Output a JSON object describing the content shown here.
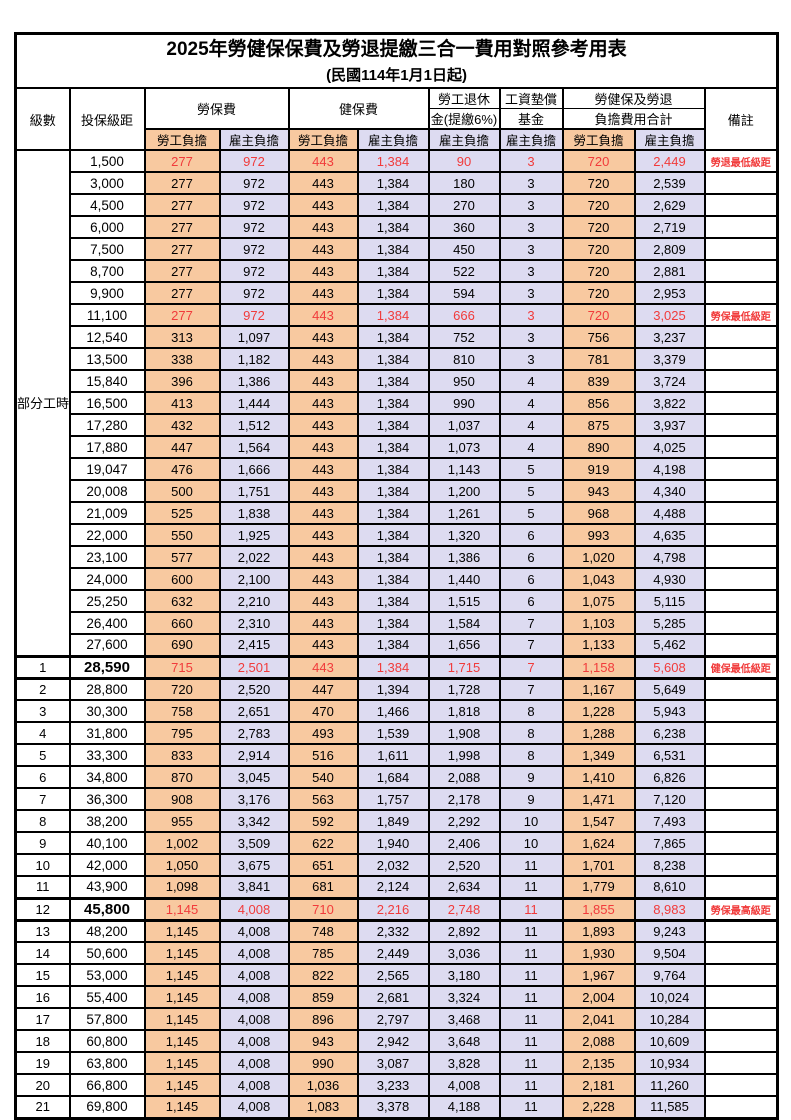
{
  "title": "2025年勞健保保費及勞退提繳三合一費用對照參考用表",
  "subtitle": "(民國114年1月1日起)",
  "header": {
    "level": "級數",
    "salary": "投保級距",
    "labor_insurance": "勞保費",
    "health_insurance": "健保費",
    "pension_line1": "勞工退休",
    "pension_line2": "金(提繳6%)",
    "wage_fund_line1": "工資墊償",
    "wage_fund_line2": "基金",
    "total_line1": "勞健保及勞退",
    "total_line2": "負擔費用合計",
    "remark": "備註",
    "employee": "勞工負擔",
    "employer": "雇主負擔"
  },
  "part_time_label": "部分工時",
  "part_time_row_count": 23,
  "colors": {
    "employee_bg": "#F8C9A0",
    "employer_bg": "#DDDBF1",
    "highlight_red": "#F13B3B",
    "border": "#000000"
  },
  "remarks_legend": {
    "pension_min": "勞退最低級距",
    "labor_min": "勞保最低級距",
    "health_min": "健保最低級距",
    "labor_max": "勞保最高級距"
  },
  "rows": [
    {
      "level": null,
      "salary": "1,500",
      "values": [
        "277",
        "972",
        "443",
        "1,384",
        "90",
        "3",
        "720",
        "2,449"
      ],
      "remark": "勞退最低級距",
      "highlight": true,
      "bold_salary": false,
      "thick": false
    },
    {
      "level": null,
      "salary": "3,000",
      "values": [
        "277",
        "972",
        "443",
        "1,384",
        "180",
        "3",
        "720",
        "2,539"
      ],
      "remark": "",
      "highlight": false,
      "bold_salary": false,
      "thick": false
    },
    {
      "level": null,
      "salary": "4,500",
      "values": [
        "277",
        "972",
        "443",
        "1,384",
        "270",
        "3",
        "720",
        "2,629"
      ],
      "remark": "",
      "highlight": false,
      "bold_salary": false,
      "thick": false
    },
    {
      "level": null,
      "salary": "6,000",
      "values": [
        "277",
        "972",
        "443",
        "1,384",
        "360",
        "3",
        "720",
        "2,719"
      ],
      "remark": "",
      "highlight": false,
      "bold_salary": false,
      "thick": false
    },
    {
      "level": null,
      "salary": "7,500",
      "values": [
        "277",
        "972",
        "443",
        "1,384",
        "450",
        "3",
        "720",
        "2,809"
      ],
      "remark": "",
      "highlight": false,
      "bold_salary": false,
      "thick": false
    },
    {
      "level": null,
      "salary": "8,700",
      "values": [
        "277",
        "972",
        "443",
        "1,384",
        "522",
        "3",
        "720",
        "2,881"
      ],
      "remark": "",
      "highlight": false,
      "bold_salary": false,
      "thick": false
    },
    {
      "level": null,
      "salary": "9,900",
      "values": [
        "277",
        "972",
        "443",
        "1,384",
        "594",
        "3",
        "720",
        "2,953"
      ],
      "remark": "",
      "highlight": false,
      "bold_salary": false,
      "thick": false
    },
    {
      "level": null,
      "salary": "11,100",
      "values": [
        "277",
        "972",
        "443",
        "1,384",
        "666",
        "3",
        "720",
        "3,025"
      ],
      "remark": "勞保最低級距",
      "highlight": true,
      "bold_salary": false,
      "thick": false
    },
    {
      "level": null,
      "salary": "12,540",
      "values": [
        "313",
        "1,097",
        "443",
        "1,384",
        "752",
        "3",
        "756",
        "3,237"
      ],
      "remark": "",
      "highlight": false,
      "bold_salary": false,
      "thick": false
    },
    {
      "level": null,
      "salary": "13,500",
      "values": [
        "338",
        "1,182",
        "443",
        "1,384",
        "810",
        "3",
        "781",
        "3,379"
      ],
      "remark": "",
      "highlight": false,
      "bold_salary": false,
      "thick": false
    },
    {
      "level": null,
      "salary": "15,840",
      "values": [
        "396",
        "1,386",
        "443",
        "1,384",
        "950",
        "4",
        "839",
        "3,724"
      ],
      "remark": "",
      "highlight": false,
      "bold_salary": false,
      "thick": false
    },
    {
      "level": null,
      "salary": "16,500",
      "values": [
        "413",
        "1,444",
        "443",
        "1,384",
        "990",
        "4",
        "856",
        "3,822"
      ],
      "remark": "",
      "highlight": false,
      "bold_salary": false,
      "thick": false
    },
    {
      "level": null,
      "salary": "17,280",
      "values": [
        "432",
        "1,512",
        "443",
        "1,384",
        "1,037",
        "4",
        "875",
        "3,937"
      ],
      "remark": "",
      "highlight": false,
      "bold_salary": false,
      "thick": false
    },
    {
      "level": null,
      "salary": "17,880",
      "values": [
        "447",
        "1,564",
        "443",
        "1,384",
        "1,073",
        "4",
        "890",
        "4,025"
      ],
      "remark": "",
      "highlight": false,
      "bold_salary": false,
      "thick": false
    },
    {
      "level": null,
      "salary": "19,047",
      "values": [
        "476",
        "1,666",
        "443",
        "1,384",
        "1,143",
        "5",
        "919",
        "4,198"
      ],
      "remark": "",
      "highlight": false,
      "bold_salary": false,
      "thick": false
    },
    {
      "level": null,
      "salary": "20,008",
      "values": [
        "500",
        "1,751",
        "443",
        "1,384",
        "1,200",
        "5",
        "943",
        "4,340"
      ],
      "remark": "",
      "highlight": false,
      "bold_salary": false,
      "thick": false
    },
    {
      "level": null,
      "salary": "21,009",
      "values": [
        "525",
        "1,838",
        "443",
        "1,384",
        "1,261",
        "5",
        "968",
        "4,488"
      ],
      "remark": "",
      "highlight": false,
      "bold_salary": false,
      "thick": false
    },
    {
      "level": null,
      "salary": "22,000",
      "values": [
        "550",
        "1,925",
        "443",
        "1,384",
        "1,320",
        "6",
        "993",
        "4,635"
      ],
      "remark": "",
      "highlight": false,
      "bold_salary": false,
      "thick": false
    },
    {
      "level": null,
      "salary": "23,100",
      "values": [
        "577",
        "2,022",
        "443",
        "1,384",
        "1,386",
        "6",
        "1,020",
        "4,798"
      ],
      "remark": "",
      "highlight": false,
      "bold_salary": false,
      "thick": false
    },
    {
      "level": null,
      "salary": "24,000",
      "values": [
        "600",
        "2,100",
        "443",
        "1,384",
        "1,440",
        "6",
        "1,043",
        "4,930"
      ],
      "remark": "",
      "highlight": false,
      "bold_salary": false,
      "thick": false
    },
    {
      "level": null,
      "salary": "25,250",
      "values": [
        "632",
        "2,210",
        "443",
        "1,384",
        "1,515",
        "6",
        "1,075",
        "5,115"
      ],
      "remark": "",
      "highlight": false,
      "bold_salary": false,
      "thick": false
    },
    {
      "level": null,
      "salary": "26,400",
      "values": [
        "660",
        "2,310",
        "443",
        "1,384",
        "1,584",
        "7",
        "1,103",
        "5,285"
      ],
      "remark": "",
      "highlight": false,
      "bold_salary": false,
      "thick": false
    },
    {
      "level": null,
      "salary": "27,600",
      "values": [
        "690",
        "2,415",
        "443",
        "1,384",
        "1,656",
        "7",
        "1,133",
        "5,462"
      ],
      "remark": "",
      "highlight": false,
      "bold_salary": false,
      "thick": false
    },
    {
      "level": "1",
      "salary": "28,590",
      "values": [
        "715",
        "2,501",
        "443",
        "1,384",
        "1,715",
        "7",
        "1,158",
        "5,608"
      ],
      "remark": "健保最低級距",
      "highlight": true,
      "bold_salary": true,
      "thick": true
    },
    {
      "level": "2",
      "salary": "28,800",
      "values": [
        "720",
        "2,520",
        "447",
        "1,394",
        "1,728",
        "7",
        "1,167",
        "5,649"
      ],
      "remark": "",
      "highlight": false,
      "bold_salary": false,
      "thick": false
    },
    {
      "level": "3",
      "salary": "30,300",
      "values": [
        "758",
        "2,651",
        "470",
        "1,466",
        "1,818",
        "8",
        "1,228",
        "5,943"
      ],
      "remark": "",
      "highlight": false,
      "bold_salary": false,
      "thick": false
    },
    {
      "level": "4",
      "salary": "31,800",
      "values": [
        "795",
        "2,783",
        "493",
        "1,539",
        "1,908",
        "8",
        "1,288",
        "6,238"
      ],
      "remark": "",
      "highlight": false,
      "bold_salary": false,
      "thick": false
    },
    {
      "level": "5",
      "salary": "33,300",
      "values": [
        "833",
        "2,914",
        "516",
        "1,611",
        "1,998",
        "8",
        "1,349",
        "6,531"
      ],
      "remark": "",
      "highlight": false,
      "bold_salary": false,
      "thick": false
    },
    {
      "level": "6",
      "salary": "34,800",
      "values": [
        "870",
        "3,045",
        "540",
        "1,684",
        "2,088",
        "9",
        "1,410",
        "6,826"
      ],
      "remark": "",
      "highlight": false,
      "bold_salary": false,
      "thick": false
    },
    {
      "level": "7",
      "salary": "36,300",
      "values": [
        "908",
        "3,176",
        "563",
        "1,757",
        "2,178",
        "9",
        "1,471",
        "7,120"
      ],
      "remark": "",
      "highlight": false,
      "bold_salary": false,
      "thick": false
    },
    {
      "level": "8",
      "salary": "38,200",
      "values": [
        "955",
        "3,342",
        "592",
        "1,849",
        "2,292",
        "10",
        "1,547",
        "7,493"
      ],
      "remark": "",
      "highlight": false,
      "bold_salary": false,
      "thick": false
    },
    {
      "level": "9",
      "salary": "40,100",
      "values": [
        "1,002",
        "3,509",
        "622",
        "1,940",
        "2,406",
        "10",
        "1,624",
        "7,865"
      ],
      "remark": "",
      "highlight": false,
      "bold_salary": false,
      "thick": false
    },
    {
      "level": "10",
      "salary": "42,000",
      "values": [
        "1,050",
        "3,675",
        "651",
        "2,032",
        "2,520",
        "11",
        "1,701",
        "8,238"
      ],
      "remark": "",
      "highlight": false,
      "bold_salary": false,
      "thick": false
    },
    {
      "level": "11",
      "salary": "43,900",
      "values": [
        "1,098",
        "3,841",
        "681",
        "2,124",
        "2,634",
        "11",
        "1,779",
        "8,610"
      ],
      "remark": "",
      "highlight": false,
      "bold_salary": false,
      "thick": false
    },
    {
      "level": "12",
      "salary": "45,800",
      "values": [
        "1,145",
        "4,008",
        "710",
        "2,216",
        "2,748",
        "11",
        "1,855",
        "8,983"
      ],
      "remark": "勞保最高級距",
      "highlight": true,
      "bold_salary": true,
      "thick": true
    },
    {
      "level": "13",
      "salary": "48,200",
      "values": [
        "1,145",
        "4,008",
        "748",
        "2,332",
        "2,892",
        "11",
        "1,893",
        "9,243"
      ],
      "remark": "",
      "highlight": false,
      "bold_salary": false,
      "thick": false
    },
    {
      "level": "14",
      "salary": "50,600",
      "values": [
        "1,145",
        "4,008",
        "785",
        "2,449",
        "3,036",
        "11",
        "1,930",
        "9,504"
      ],
      "remark": "",
      "highlight": false,
      "bold_salary": false,
      "thick": false
    },
    {
      "level": "15",
      "salary": "53,000",
      "values": [
        "1,145",
        "4,008",
        "822",
        "2,565",
        "3,180",
        "11",
        "1,967",
        "9,764"
      ],
      "remark": "",
      "highlight": false,
      "bold_salary": false,
      "thick": false
    },
    {
      "level": "16",
      "salary": "55,400",
      "values": [
        "1,145",
        "4,008",
        "859",
        "2,681",
        "3,324",
        "11",
        "2,004",
        "10,024"
      ],
      "remark": "",
      "highlight": false,
      "bold_salary": false,
      "thick": false
    },
    {
      "level": "17",
      "salary": "57,800",
      "values": [
        "1,145",
        "4,008",
        "896",
        "2,797",
        "3,468",
        "11",
        "2,041",
        "10,284"
      ],
      "remark": "",
      "highlight": false,
      "bold_salary": false,
      "thick": false
    },
    {
      "level": "18",
      "salary": "60,800",
      "values": [
        "1,145",
        "4,008",
        "943",
        "2,942",
        "3,648",
        "11",
        "2,088",
        "10,609"
      ],
      "remark": "",
      "highlight": false,
      "bold_salary": false,
      "thick": false
    },
    {
      "level": "19",
      "salary": "63,800",
      "values": [
        "1,145",
        "4,008",
        "990",
        "3,087",
        "3,828",
        "11",
        "2,135",
        "10,934"
      ],
      "remark": "",
      "highlight": false,
      "bold_salary": false,
      "thick": false
    },
    {
      "level": "20",
      "salary": "66,800",
      "values": [
        "1,145",
        "4,008",
        "1,036",
        "3,233",
        "4,008",
        "11",
        "2,181",
        "11,260"
      ],
      "remark": "",
      "highlight": false,
      "bold_salary": false,
      "thick": false
    },
    {
      "level": "21",
      "salary": "69,800",
      "values": [
        "1,145",
        "4,008",
        "1,083",
        "3,378",
        "4,188",
        "11",
        "2,228",
        "11,585"
      ],
      "remark": "",
      "highlight": false,
      "bold_salary": false,
      "thick": false
    }
  ]
}
